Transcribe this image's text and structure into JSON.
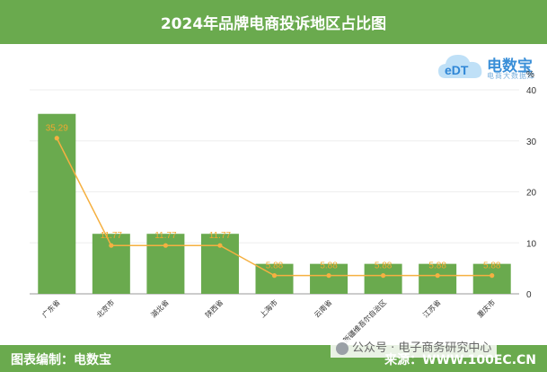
{
  "header": {
    "title": "2024年品牌电商投诉地区占比图"
  },
  "logo": {
    "brand_mark": "eDT",
    "name": "电数宝",
    "tagline": "电商大数据库"
  },
  "footer": {
    "left_text": "图表编制：电数宝",
    "right_text": "来源：WWW.100EC.CN"
  },
  "watermark": {
    "text": "公众号 · 电子商务研究中心"
  },
  "colors": {
    "header_bg": "#6aaa4e",
    "bar": "#6aaa4e",
    "line": "#f5b041",
    "label": "#f0a830"
  },
  "chart_data": {
    "type": "bar",
    "title": "2024年品牌电商投诉地区占比图",
    "xlabel": "",
    "ylabel": "%",
    "ylim": [
      0,
      40
    ],
    "yticks": [
      0,
      10,
      20,
      30,
      40
    ],
    "y_axis_position": "right",
    "grid": true,
    "categories": [
      "广东省",
      "北京市",
      "湖北省",
      "陕西省",
      "上海市",
      "云南省",
      "新疆维吾尔自治区",
      "江苏省",
      "重庆市"
    ],
    "values": [
      35.29,
      11.77,
      11.77,
      11.77,
      5.88,
      5.88,
      5.88,
      5.88,
      5.88
    ],
    "data_labels": [
      "35.29",
      "11.77",
      "11.77",
      "11.77",
      "5.88",
      "5.88",
      "5.88",
      "5.88",
      "5.88"
    ],
    "overlay_line": true
  }
}
